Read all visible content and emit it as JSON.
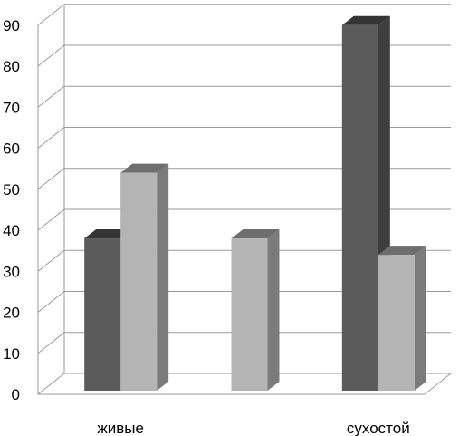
{
  "chart_data": {
    "type": "bar",
    "style": "3d-clustered",
    "title": "",
    "xlabel": "",
    "ylabel": "",
    "ylim": [
      0,
      90
    ],
    "yticks": [
      0,
      10,
      20,
      30,
      40,
      50,
      60,
      70,
      80,
      90
    ],
    "grid": true,
    "legend": "none",
    "groups": [
      {
        "label": "живые",
        "bars": [
          {
            "value": 38,
            "series": 0
          },
          {
            "value": 54,
            "series": 1
          }
        ]
      },
      {
        "label": "",
        "bars": [
          {
            "value": 38,
            "series": 1
          }
        ]
      },
      {
        "label": "сухостой",
        "bars": [
          {
            "value": 90,
            "series": 0
          },
          {
            "value": 34,
            "series": 1
          }
        ]
      }
    ],
    "series_colors": {
      "0": {
        "front": "#5b5b5b",
        "side": "#3e3e3e",
        "top": "#343434"
      },
      "1": {
        "front": "#b4b4b4",
        "side": "#7b7b7b",
        "top": "#6e6e6e"
      }
    }
  }
}
